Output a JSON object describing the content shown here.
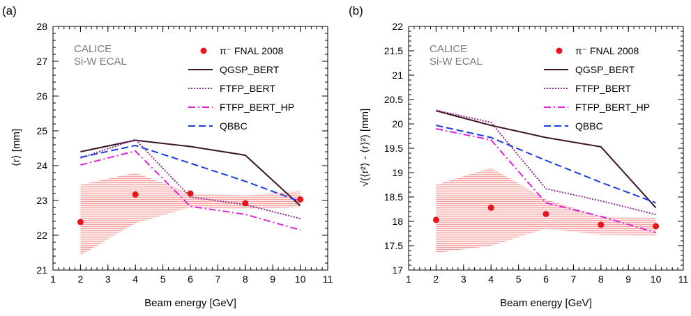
{
  "panels": [
    {
      "panel_label": "(a)",
      "experiment_label_1": "CALICE",
      "experiment_label_2": "Si-W ECAL",
      "xlabel": "Beam energy [GeV]",
      "ylabel": "⟨r⟩ [mm]"
    },
    {
      "panel_label": "(b)",
      "experiment_label_1": "CALICE",
      "experiment_label_2": "Si-W ECAL",
      "xlabel": "Beam energy [GeV]",
      "ylabel": "√(⟨r²⟩ - ⟨r⟩²) [mm]"
    }
  ],
  "legend": {
    "data_label": "π⁻ FNAL 2008",
    "qgsp_label": "QGSP_BERT",
    "ftfp_label": "FTFP_BERT",
    "ftfphp_label": "FTFP_BERT_HP",
    "qbbc_label": "QBBC"
  },
  "colors": {
    "data": "#e8131b",
    "band": "#f7b8b8",
    "QGSP_BERT": "#3d1526",
    "FTFP_BERT": "#8e2a8e",
    "FTFP_BERT_HP": "#e020e0",
    "QBBC": "#1a3ce0"
  },
  "chart_data": [
    {
      "type": "line",
      "xlabel": "Beam energy [GeV]",
      "ylabel": "⟨r⟩ [mm]",
      "xlim": [
        1,
        11
      ],
      "ylim": [
        21,
        28
      ],
      "xticks": [
        1,
        2,
        3,
        4,
        5,
        6,
        7,
        8,
        9,
        10,
        11
      ],
      "yticks": [
        21,
        22,
        23,
        24,
        25,
        26,
        27,
        28
      ],
      "x": [
        2,
        4,
        6,
        8,
        10
      ],
      "band": {
        "lower": [
          21.42,
          22.35,
          22.8,
          22.75,
          22.8
        ],
        "upper": [
          23.45,
          23.8,
          23.2,
          23.15,
          23.28
        ]
      },
      "series": [
        {
          "name": "π⁻ FNAL 2008",
          "style": "points",
          "values": [
            22.38,
            23.17,
            23.2,
            22.92,
            23.03
          ]
        },
        {
          "name": "QGSP_BERT",
          "style": "solid",
          "values": [
            24.4,
            24.73,
            24.55,
            24.3,
            22.85
          ]
        },
        {
          "name": "FTFP_BERT",
          "style": "dotted",
          "values": [
            24.22,
            24.75,
            23.1,
            22.88,
            22.48
          ]
        },
        {
          "name": "FTFP_BERT_HP",
          "style": "dashdot",
          "values": [
            24.02,
            24.42,
            22.83,
            22.6,
            22.15
          ]
        },
        {
          "name": "QBBC",
          "style": "dashed",
          "values": [
            24.24,
            24.58,
            24.07,
            23.55,
            22.97
          ]
        }
      ]
    },
    {
      "type": "line",
      "xlabel": "Beam energy [GeV]",
      "ylabel": "√(⟨r²⟩ - ⟨r⟩²) [mm]",
      "xlim": [
        1,
        11
      ],
      "ylim": [
        17,
        22
      ],
      "xticks": [
        1,
        2,
        3,
        4,
        5,
        6,
        7,
        8,
        9,
        10,
        11
      ],
      "yticks": [
        17,
        17.5,
        18,
        18.5,
        19,
        19.5,
        20,
        20.5,
        21,
        21.5,
        22
      ],
      "x": [
        2,
        4,
        6,
        8,
        10
      ],
      "band": {
        "lower": [
          17.35,
          17.5,
          17.85,
          17.72,
          17.7
        ],
        "upper": [
          18.75,
          19.1,
          18.45,
          18.1,
          18.08
        ]
      },
      "series": [
        {
          "name": "π⁻ FNAL 2008",
          "style": "points",
          "values": [
            18.03,
            18.28,
            18.15,
            17.93,
            17.9
          ]
        },
        {
          "name": "QGSP_BERT",
          "style": "solid",
          "values": [
            20.27,
            19.97,
            19.72,
            19.53,
            18.28
          ]
        },
        {
          "name": "FTFP_BERT",
          "style": "dotted",
          "values": [
            20.28,
            20.03,
            18.67,
            18.42,
            18.14
          ]
        },
        {
          "name": "FTFP_BERT_HP",
          "style": "dashdot",
          "values": [
            19.9,
            19.67,
            18.38,
            18.1,
            17.77
          ]
        },
        {
          "name": "QBBC",
          "style": "dashed",
          "values": [
            19.97,
            19.72,
            19.25,
            18.8,
            18.38
          ]
        }
      ]
    }
  ]
}
